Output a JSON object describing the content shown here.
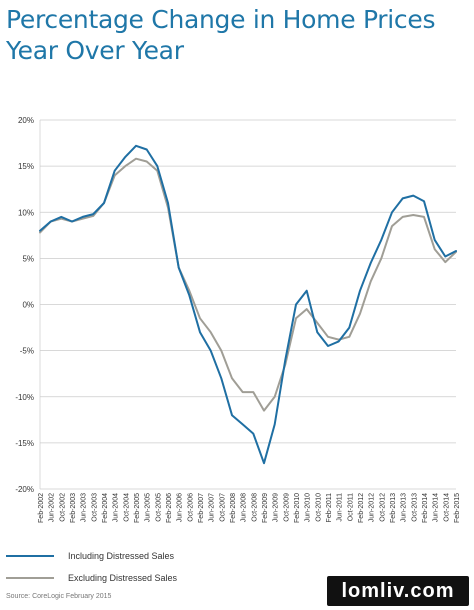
{
  "title_line1": "Percentage Change in Home Prices",
  "title_line2": "Year Over Year",
  "source": "Source: CoreLogic February 2015",
  "watermark": "lomliv.com",
  "colors": {
    "including": "#1f6fa3",
    "excluding": "#a09e96",
    "axis": "#cccccc",
    "text": "#333333"
  },
  "chart_data": {
    "type": "line",
    "x": [
      "Feb-2002",
      "Jun-2002",
      "Oct-2002",
      "Feb-2003",
      "Jun-2003",
      "Oct-2003",
      "Feb-2004",
      "Jun-2004",
      "Oct-2004",
      "Feb-2005",
      "Jun-2005",
      "Oct-2005",
      "Feb-2006",
      "Jun-2006",
      "Oct-2006",
      "Feb-2007",
      "Jun-2007",
      "Oct-2007",
      "Feb-2008",
      "Jun-2008",
      "Oct-2008",
      "Feb-2009",
      "Jun-2009",
      "Oct-2009",
      "Feb-2010",
      "Jun-2010",
      "Oct-2010",
      "Feb-2011",
      "Jun-2011",
      "Oct-2011",
      "Feb-2012",
      "Jun-2012",
      "Oct-2012",
      "Feb-2013",
      "Jun-2013",
      "Oct-2013",
      "Feb-2014",
      "Jun-2014",
      "Oct-2014",
      "Feb-2015"
    ],
    "yticks": [
      "-20%",
      "-15%",
      "-10%",
      "-5%",
      "0%",
      "5%",
      "10%",
      "15%",
      "20%"
    ],
    "ylim": [
      -20,
      20
    ],
    "series": [
      {
        "name": "Including Distressed Sales",
        "values": [
          8.0,
          9.0,
          9.5,
          9.0,
          9.5,
          9.8,
          11.0,
          14.5,
          16.0,
          17.2,
          16.8,
          15.0,
          11.0,
          4.0,
          1.0,
          -3.0,
          -5.0,
          -8.0,
          -12.0,
          -13.0,
          -14.0,
          -17.2,
          -13.0,
          -6.0,
          0.0,
          1.5,
          -3.0,
          -4.5,
          -4.0,
          -2.5,
          1.5,
          4.5,
          7.0,
          10.0,
          11.5,
          11.8,
          11.2,
          7.0,
          5.2,
          5.8
        ]
      },
      {
        "name": "Excluding Distressed Sales",
        "values": [
          7.8,
          9.0,
          9.3,
          9.0,
          9.3,
          9.6,
          11.0,
          14.0,
          15.0,
          15.8,
          15.5,
          14.5,
          10.5,
          4.0,
          1.5,
          -1.5,
          -3.0,
          -5.0,
          -8.0,
          -9.5,
          -9.5,
          -11.5,
          -10.0,
          -6.5,
          -1.5,
          -0.5,
          -2.0,
          -3.5,
          -3.8,
          -3.5,
          -1.0,
          2.5,
          5.0,
          8.5,
          9.5,
          9.7,
          9.5,
          6.0,
          4.6,
          5.7
        ]
      }
    ]
  }
}
